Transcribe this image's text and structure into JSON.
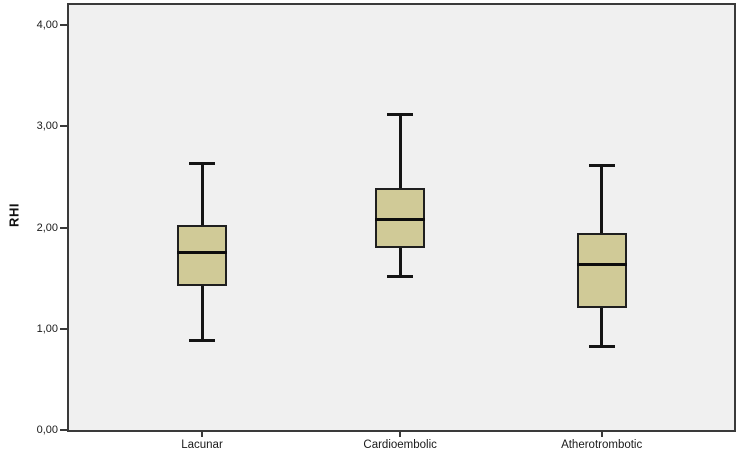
{
  "figure": {
    "background": "#ffffff",
    "plot_background": "#f0f0f0",
    "frame_color": "#3a3a3a"
  },
  "chart_data": {
    "type": "box",
    "title": "",
    "xlabel": "",
    "ylabel": "RHI",
    "ylim": [
      0,
      4.2
    ],
    "grid": false,
    "legend_position": "none",
    "decimal_separator": ",",
    "yticks": [
      {
        "value": 0,
        "label": "0,00"
      },
      {
        "value": 1,
        "label": "1,00"
      },
      {
        "value": 2,
        "label": "2,00"
      },
      {
        "value": 3,
        "label": "3,00"
      },
      {
        "value": 4,
        "label": "4,00"
      }
    ],
    "categories": [
      "Lacunar",
      "Cardioembolic",
      "Atherotrombotic"
    ],
    "series": [
      {
        "name": "Lacunar",
        "whisker_low": 0.88,
        "q1": 1.42,
        "median": 1.75,
        "q3": 2.03,
        "whisker_high": 2.63
      },
      {
        "name": "Cardioembolic",
        "whisker_low": 1.52,
        "q1": 1.8,
        "median": 2.08,
        "q3": 2.39,
        "whisker_high": 3.12
      },
      {
        "name": "Atherotrombotic",
        "whisker_low": 0.83,
        "q1": 1.21,
        "median": 1.64,
        "q3": 1.95,
        "whisker_high": 2.61
      }
    ],
    "style": {
      "box_fill": "#d0ca97",
      "box_border": "#1f1f1f",
      "median_color": "#0d0d0d",
      "whisker_color": "#141414",
      "tick_color": "#3a3a3a",
      "label_color": "#1a1a1a"
    }
  }
}
